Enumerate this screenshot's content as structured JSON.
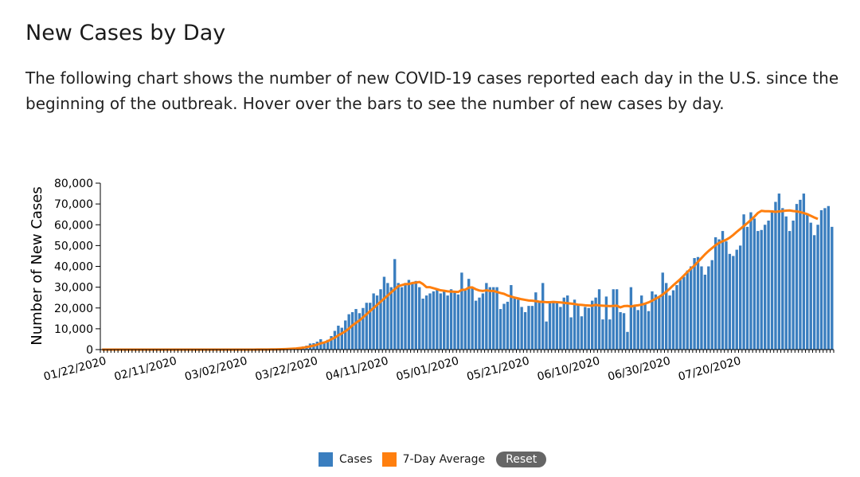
{
  "header": {
    "title": "New Cases by Day",
    "description": "The following chart shows the number of new COVID-19 cases reported each day in the U.S. since the beginning of the outbreak. Hover over the bars to see the number of new cases by day."
  },
  "legend": {
    "cases_label": "Cases",
    "avg_label": "7-Day Average",
    "reset_label": "Reset"
  },
  "colors": {
    "bar": "#3a7ebf",
    "average": "#ff7f0e",
    "axis": "#000000"
  },
  "chart_data": {
    "type": "bar",
    "ylabel": "Number of New Cases",
    "ylim": [
      0,
      80000
    ],
    "yticks": [
      0,
      10000,
      20000,
      30000,
      40000,
      50000,
      60000,
      70000,
      80000
    ],
    "ytick_labels": [
      "0",
      "10,000",
      "20,000",
      "30,000",
      "40,000",
      "50,000",
      "60,000",
      "70,000",
      "80,000"
    ],
    "start_date": "01/22/2020",
    "xtick_labels": [
      "01/22/2020",
      "02/11/2020",
      "03/02/2020",
      "03/22/2020",
      "04/11/2020",
      "05/01/2020",
      "05/21/2020",
      "06/10/2020",
      "06/30/2020",
      "07/20/2020"
    ],
    "xtick_every_days": 20,
    "series": [
      {
        "name": "Cases",
        "type": "bar",
        "values": [
          0,
          0,
          1,
          0,
          2,
          0,
          0,
          1,
          0,
          1,
          1,
          0,
          0,
          1,
          0,
          0,
          1,
          0,
          0,
          0,
          0,
          0,
          0,
          0,
          0,
          0,
          0,
          0,
          0,
          0,
          0,
          0,
          0,
          1,
          0,
          1,
          5,
          8,
          12,
          18,
          20,
          25,
          30,
          40,
          55,
          70,
          100,
          120,
          160,
          200,
          300,
          400,
          500,
          600,
          700,
          900,
          1200,
          1500,
          1900,
          2900,
          3100,
          3800,
          5000,
          3500,
          4700,
          6500,
          9000,
          11500,
          10500,
          14000,
          17000,
          18000,
          19500,
          17500,
          20000,
          22500,
          22500,
          27000,
          26000,
          29000,
          35000,
          32000,
          30000,
          43500,
          32000,
          30000,
          32000,
          33500,
          32000,
          33000,
          30000,
          24500,
          26000,
          27000,
          28000,
          29000,
          27000,
          28500,
          26000,
          29000,
          28000,
          26500,
          37000,
          29000,
          34000,
          30000,
          23500,
          25000,
          27000,
          32000,
          30000,
          30000,
          30000,
          19500,
          22000,
          23000,
          31000,
          25000,
          24000,
          20500,
          18000,
          21000,
          21000,
          27500,
          23000,
          32000,
          13500,
          23000,
          23000,
          22500,
          20500,
          25000,
          26000,
          15500,
          24000,
          22000,
          16000,
          20500,
          20000,
          23500,
          25000,
          29000,
          14500,
          25500,
          14500,
          29000,
          29000,
          18000,
          17500,
          8500,
          30000,
          21000,
          19000,
          26000,
          22000,
          18500,
          28000,
          26500,
          25500,
          37000,
          32000,
          26000,
          28500,
          31000,
          34000,
          35000,
          38000,
          40000,
          44000,
          44500,
          40000,
          36000,
          40000,
          43000,
          54000,
          53000,
          57000,
          52000,
          46000,
          45000,
          48000,
          50000,
          65000,
          59000,
          66000,
          63000,
          57000,
          57500,
          60000,
          62000,
          67000,
          71000,
          75000,
          68000,
          64000,
          57000,
          62000,
          70000,
          72000,
          75000,
          65000,
          61000,
          55000,
          60000,
          67000,
          68000,
          69000,
          59000
        ]
      },
      {
        "name": "7-Day Average",
        "type": "line",
        "values": [
          0,
          0,
          0,
          0,
          0,
          0,
          0,
          0,
          0,
          0,
          0,
          0,
          0,
          0,
          0,
          0,
          0,
          0,
          0,
          0,
          0,
          0,
          0,
          0,
          0,
          0,
          0,
          0,
          0,
          0,
          0,
          0,
          0,
          0,
          0,
          0,
          1,
          2,
          4,
          6,
          9,
          12,
          17,
          22,
          28,
          37,
          48,
          62,
          80,
          103,
          138,
          183,
          244,
          326,
          424,
          548,
          714,
          929,
          1171,
          1529,
          1910,
          2386,
          2990,
          3411,
          4057,
          4943,
          5757,
          6857,
          7786,
          8800,
          10100,
          11629,
          12857,
          14000,
          15500,
          17000,
          18500,
          20000,
          21500,
          23000,
          24500,
          26000,
          27500,
          29000,
          30500,
          31000,
          31500,
          31500,
          32000,
          32200,
          32500,
          31500,
          30000,
          30000,
          29500,
          29000,
          28500,
          28300,
          28000,
          27900,
          27800,
          27700,
          28700,
          28800,
          29800,
          29900,
          29000,
          28400,
          28200,
          28500,
          28200,
          28200,
          27700,
          27200,
          26800,
          26000,
          25500,
          25000,
          24600,
          24200,
          23900,
          23600,
          23500,
          23300,
          23000,
          22900,
          22800,
          22800,
          22900,
          22800,
          22700,
          22500,
          22300,
          22100,
          21900,
          21600,
          21500,
          21300,
          21200,
          21100,
          21500,
          21200,
          21100,
          21000,
          20900,
          21000,
          21100,
          20300,
          20900,
          21000,
          20700,
          21100,
          21300,
          21600,
          22100,
          22700,
          23500,
          24500,
          25300,
          26500,
          27800,
          29300,
          30900,
          32400,
          33900,
          35600,
          37300,
          38900,
          40400,
          42200,
          44000,
          45800,
          47400,
          48800,
          50200,
          51300,
          52100,
          52800,
          53800,
          55100,
          56600,
          58000,
          59400,
          60800,
          62300,
          63900,
          65700,
          66700,
          66500,
          66500,
          66400,
          66200,
          66400,
          66600,
          66800,
          66900,
          66600,
          66400,
          66100,
          65600,
          65100,
          64300,
          63500,
          62800
        ]
      }
    ]
  }
}
